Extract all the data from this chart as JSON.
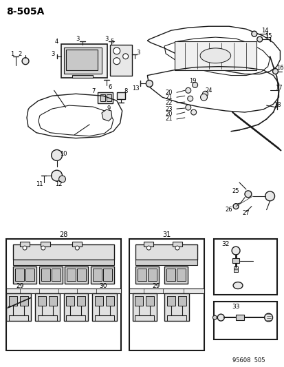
{
  "title": "8-505A",
  "footer": "95608  505",
  "bg_color": "#ffffff",
  "line_color": "#1a1a1a",
  "fig_width": 4.14,
  "fig_height": 5.33,
  "dpi": 100
}
